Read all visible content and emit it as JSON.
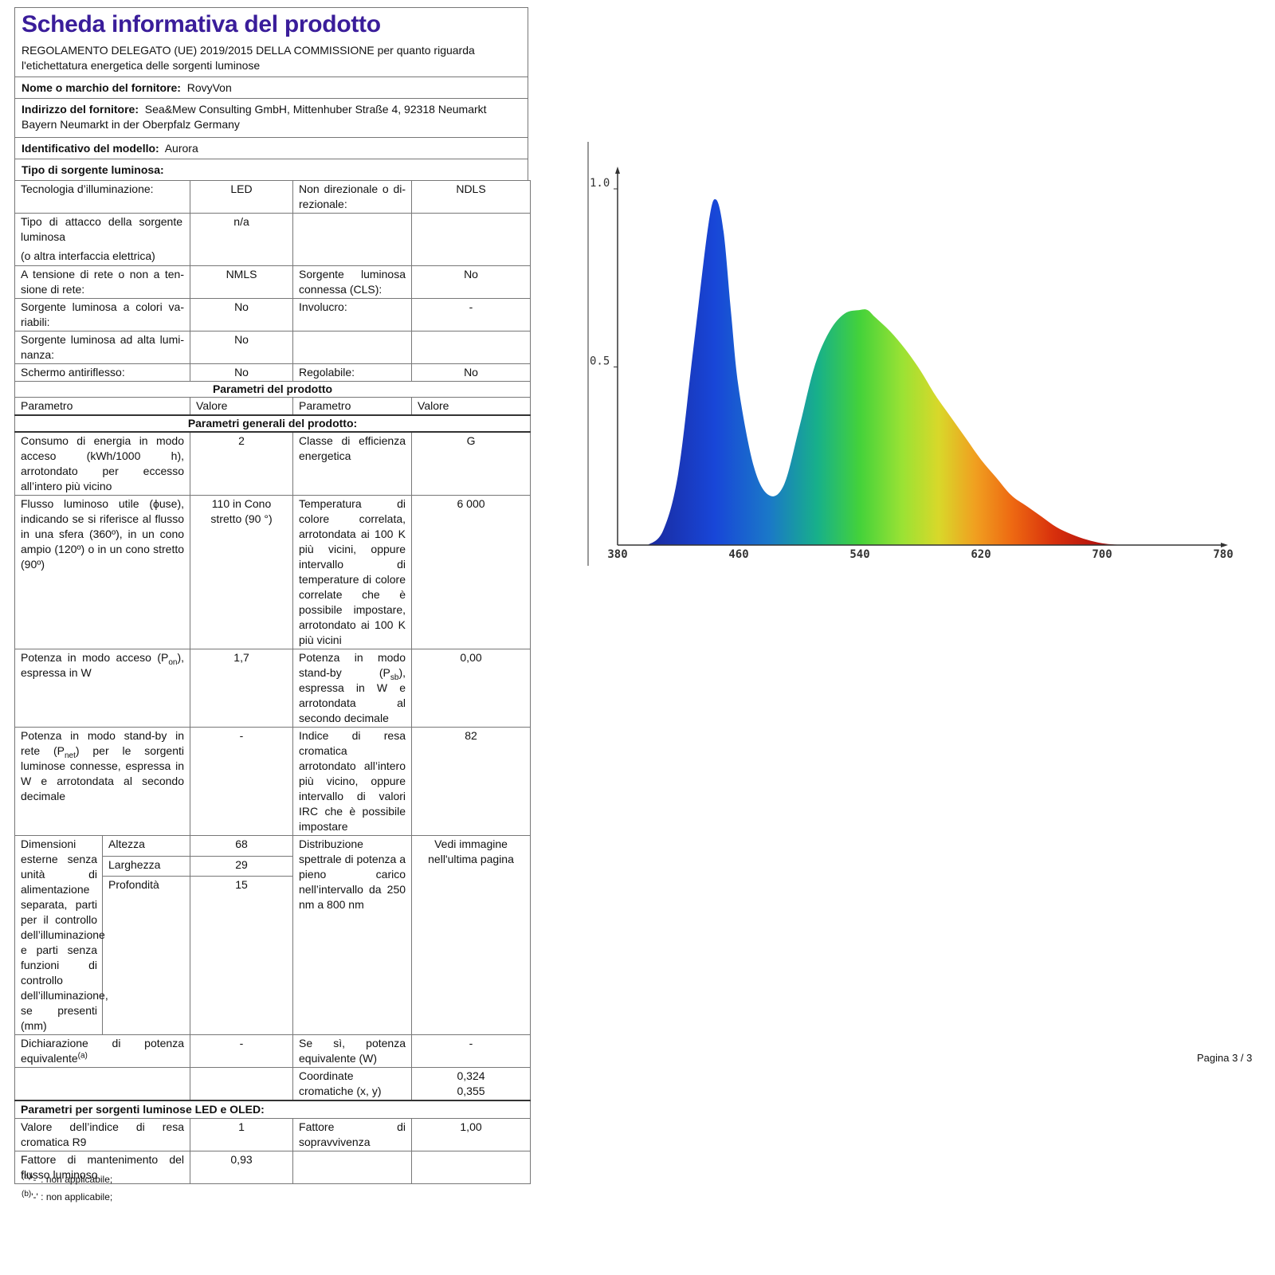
{
  "header": {
    "title": "Scheda informativa del prodotto",
    "regulation": "REGOLAMENTO DELEGATO (UE) 2019/2015 DELLA COMMISSIONE per quanto riguarda l'etichettatura energetica delle sorgenti luminose"
  },
  "supplier": {
    "name_label": "Nome o marchio del fornitore:",
    "name_value": "RovyVon",
    "address_label": "Indirizzo del fornitore:",
    "address_value": "Sea&Mew Consulting GmbH, Mittenhuber Straße 4, 92318 Neumarkt Bayern Neumarkt in der Oberpfalz Germany",
    "model_label": "Identificativo del modello:",
    "model_value": "Aurora",
    "source_type_label": "Tipo di sorgente luminosa:"
  },
  "source_type": {
    "tech_label": "Tecnologia d’illuminazione:",
    "tech_value": "LED",
    "directional_label": "Non direzionale o di-rezionale:",
    "directional_value": "NDLS",
    "cap_label1": "Tipo di attacco della sorgente luminosa",
    "cap_label2": "(o altra interfaccia elettrica)",
    "cap_value": "n/a",
    "mains_label": "A tensione di rete o non a ten-sione di rete:",
    "mains_value": "NMLS",
    "connected_label": "Sorgente luminosa connessa (CLS):",
    "connected_value": "No",
    "colour_label": "Sorgente luminosa a colori va-riabili:",
    "colour_value": "No",
    "envelope_label": "Involucro:",
    "envelope_value": "-",
    "highlum_label": "Sorgente luminosa ad alta lumi-nanza:",
    "highlum_value": "No",
    "antiglare_label": "Schermo antiriflesso:",
    "antiglare_value": "No",
    "dimmable_label": "Regolabile:",
    "dimmable_value": "No"
  },
  "product_params": {
    "section_title": "Parametri del prodotto",
    "col_param": "Parametro",
    "col_value": "Valore",
    "general_title": "Parametri generali del prodotto:",
    "energy_label": "Consumo di energia in modo acceso (kWh/1000 h), arrotondato per eccesso all’intero più vicino",
    "energy_value": "2",
    "class_label": "Classe di efficienza energetica",
    "class_value": "G",
    "flux_label": "Flusso luminoso utile (ϕuse), indicando se si riferisce al flusso in una sfera (360º), in un cono ampio (120º) o in un cono stretto (90º)",
    "flux_value": "110 in Cono stretto (90 °)",
    "cct_label": "Temperatura di colore correlata, arrotondata ai 100 K più vicini, oppure intervallo di temperature di colore correlate che è possibile impostare, arrotondato ai 100 K più vicini",
    "cct_value": "6 000",
    "pon_label_pre": "Potenza in modo acceso (P",
    "pon_sub": "on",
    "pon_label_post": "), espressa in W",
    "pon_value": "1,7",
    "psb_label_pre": "Potenza in modo stand-by (P",
    "psb_sub": "sb",
    "psb_label_post": "), espressa in W e arrotondata al secondo decimale",
    "psb_value": "0,00",
    "pnet_label_pre": "Potenza in modo stand-by in rete (P",
    "pnet_sub": "net",
    "pnet_label_post": ") per le sorgenti luminose connesse, espressa in W e arrotondata al secondo decimale",
    "pnet_value": "-",
    "cri_label": "Indice di resa cromatica arrotondato all’intero più vicino, oppure intervallo di valori IRC che è possibile impostare",
    "cri_value": "82",
    "dims_label": "Dimensioni esterne senza unità di alimentazione separata, parti per il controllo dell’illuminazione e parti senza funzioni di controllo dell’illuminazione, se presenti (mm)",
    "height_label": "Altezza",
    "height_value": "68",
    "width_label": "Larghezza",
    "width_value": "29",
    "depth_label": "Profondità",
    "depth_value": "15",
    "spd_label": "Distribuzione spettrale di potenza a pieno carico nell’intervallo da 250 nm a 800 nm",
    "spd_value": "Vedi immagine nell'ultima pagina",
    "equiv_label_pre": "Dichiarazione di potenza equivalente",
    "equiv_sup": "(a)",
    "equiv_value": "-",
    "equiv_power_label": "Se sì, potenza equivalente (W)",
    "equiv_power_value": "-",
    "chroma_label": "Coordinate cromatiche (x, y)",
    "chroma_x": "0,324",
    "chroma_y": "0,355"
  },
  "led_params": {
    "section_title": "Parametri per sorgenti luminose LED e OLED:",
    "r9_label": "Valore dell’indice di resa cromatica R9",
    "r9_value": "1",
    "survival_label": "Fattore di sopravvivenza",
    "survival_value": "1,00",
    "lumen_label": "Fattore di mantenimento del flusso luminoso",
    "lumen_value": "0,93"
  },
  "notes": {
    "a_sup": "(a)",
    "a_text": "'-' : non applicabile;",
    "b_sup": "(b)",
    "b_text": "'-' : non applicabile;"
  },
  "page": {
    "number": "Pagina 3 / 3"
  },
  "chart_data": {
    "type": "area",
    "x_ticks": [
      "380",
      "460",
      "540",
      "620",
      "700",
      "780"
    ],
    "y_ticks": [
      "1.0",
      "0.5"
    ],
    "xlim": [
      380,
      780
    ],
    "ylim": [
      0,
      1.0
    ],
    "x": [
      400,
      410,
      420,
      430,
      440,
      445,
      450,
      455,
      460,
      470,
      480,
      490,
      500,
      510,
      520,
      530,
      540,
      545,
      550,
      560,
      570,
      580,
      590,
      600,
      610,
      620,
      630,
      640,
      650,
      660,
      670,
      680,
      690,
      700,
      710,
      720
    ],
    "values": [
      0.0,
      0.04,
      0.2,
      0.55,
      0.9,
      0.97,
      0.88,
      0.65,
      0.44,
      0.22,
      0.14,
      0.17,
      0.33,
      0.5,
      0.6,
      0.65,
      0.66,
      0.66,
      0.64,
      0.6,
      0.55,
      0.49,
      0.42,
      0.36,
      0.3,
      0.24,
      0.19,
      0.14,
      0.11,
      0.08,
      0.05,
      0.03,
      0.015,
      0.005,
      0.001,
      0.0
    ]
  }
}
